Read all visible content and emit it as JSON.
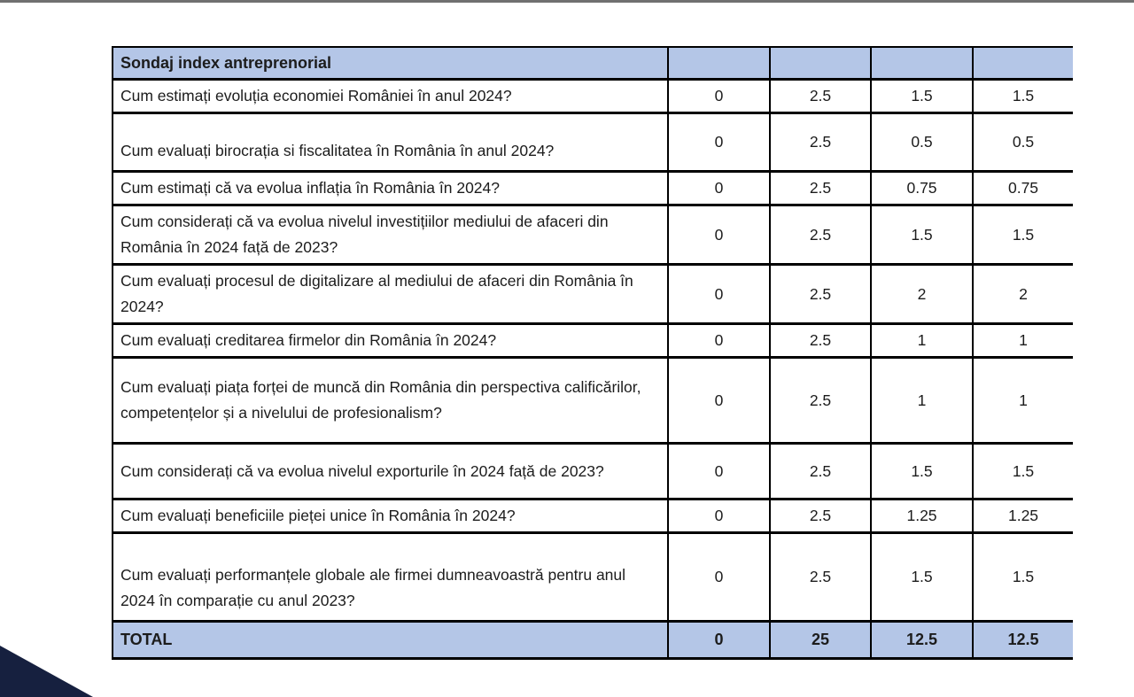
{
  "page": {
    "background_color": "#ffffff",
    "top_line_color": "#707070",
    "accent_blue": "#b4c6e7",
    "triangle_color": "#16203f",
    "border_color": "#000000"
  },
  "table": {
    "header_title": "Sondaj index antreprenorial",
    "rows": [
      {
        "question": "Cum estimați evoluția economiei României în anul 2024?",
        "values": [
          "0",
          "2.5",
          "1.5",
          "1.5"
        ]
      },
      {
        "question": "Cum evaluați birocrația si fiscalitatea în România în anul 2024?",
        "values": [
          "0",
          "2.5",
          "0.5",
          "0.5"
        ]
      },
      {
        "question": "Cum estimați că va evolua inflația în România în 2024?",
        "values": [
          "0",
          "2.5",
          "0.75",
          "0.75"
        ]
      },
      {
        "question": "Cum considerați că va evolua nivelul investițiilor mediului de afaceri din România în 2024 față de 2023?",
        "values": [
          "0",
          "2.5",
          "1.5",
          "1.5"
        ]
      },
      {
        "question": "Cum evaluați procesul de digitalizare al mediului de afaceri din România în 2024?",
        "values": [
          "0",
          "2.5",
          "2",
          "2"
        ]
      },
      {
        "question": "Cum evaluați creditarea firmelor din România în 2024?",
        "values": [
          "0",
          "2.5",
          "1",
          "1"
        ]
      },
      {
        "question": "Cum evaluați piața forței de muncă din România din perspectiva calificărilor, competențelor și a nivelului de profesionalism?",
        "values": [
          "0",
          "2.5",
          "1",
          "1"
        ]
      },
      {
        "question": "Cum considerați că va evolua nivelul exporturile în 2024 față de 2023?",
        "values": [
          "0",
          "2.5",
          "1.5",
          "1.5"
        ]
      },
      {
        "question": "Cum evaluați beneficiile pieței unice în România în 2024?",
        "values": [
          "0",
          "2.5",
          "1.25",
          "1.25"
        ]
      },
      {
        "question": "Cum evaluați performanțele globale ale firmei dumneavoastră pentru anul 2024 în comparație cu anul 2023?",
        "values": [
          "0",
          "2.5",
          "1.5",
          "1.5"
        ]
      }
    ],
    "total": {
      "label": "TOTAL",
      "values": [
        "0",
        "25",
        "12.5",
        "12.5"
      ]
    }
  }
}
